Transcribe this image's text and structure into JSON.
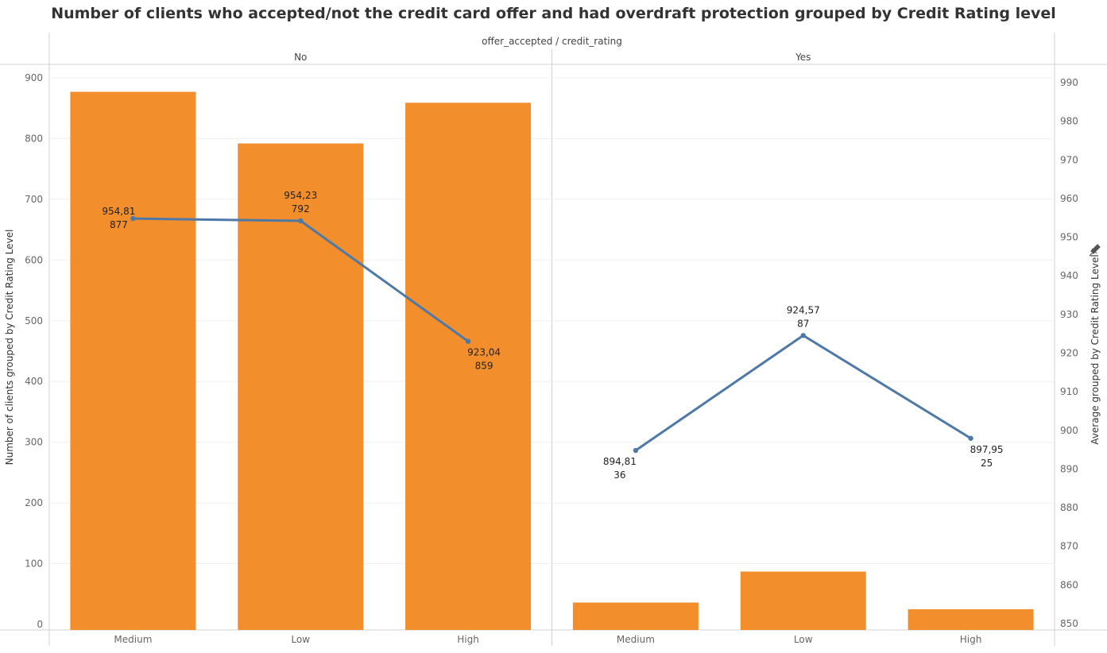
{
  "title": "Number of clients who accepted/not the credit card offer and had overdraft protection grouped by Credit Rating level",
  "chart_data": {
    "type": "bar",
    "column_header": "offer_accepted / credit_rating",
    "panels": [
      {
        "name": "No",
        "categories": [
          "Medium",
          "Low",
          "High"
        ],
        "count": [
          877,
          792,
          859
        ],
        "average": [
          954.81,
          954.23,
          923.04
        ],
        "labels_line1": [
          "954,81",
          "954,23",
          "923,04"
        ],
        "labels_line2": [
          "877",
          "792",
          "859"
        ]
      },
      {
        "name": "Yes",
        "categories": [
          "Medium",
          "Low",
          "High"
        ],
        "count": [
          36,
          87,
          25
        ],
        "average": [
          894.81,
          924.57,
          897.95
        ],
        "labels_line1": [
          "894,81",
          "924,57",
          "897,95"
        ],
        "labels_line2": [
          "36",
          "87",
          "25"
        ]
      }
    ],
    "series": [
      {
        "name": "Number of clients grouped by Credit Rating Level",
        "mark": "bar",
        "axis": "left",
        "color": "#f28e2b"
      },
      {
        "name": "Average grouped by Credit Rating Level",
        "mark": "line",
        "axis": "right",
        "color": "#4e79a7"
      }
    ],
    "ylabel": "Number of clients grouped by Credit Rating Level",
    "y2label": "Average grouped by Credit Rating Level",
    "ylim": [
      0,
      900
    ],
    "y2lim": [
      850,
      990
    ],
    "yticks": [
      0,
      100,
      200,
      300,
      400,
      500,
      600,
      700,
      800,
      900
    ],
    "y2ticks": [
      850,
      860,
      870,
      880,
      890,
      900,
      910,
      920,
      930,
      940,
      950,
      960,
      970,
      980,
      990
    ],
    "grid": true
  }
}
